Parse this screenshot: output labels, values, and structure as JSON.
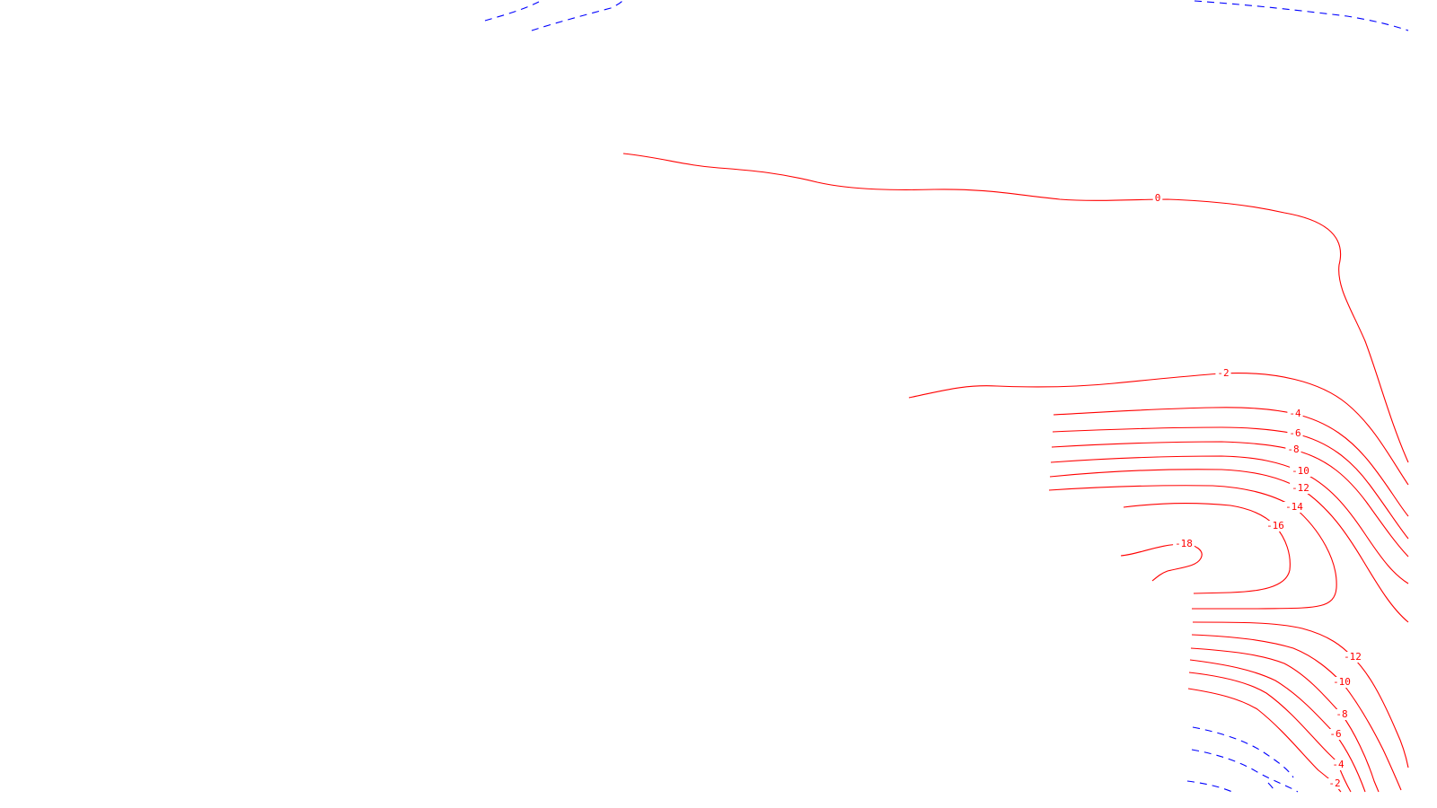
{
  "map": {
    "colors": {
      "negative": "#ff0000",
      "positive": "#0000ff",
      "background": "#ffffff"
    },
    "contours": [
      {
        "id": "c0",
        "label": "0",
        "style": "solid",
        "color": "negative"
      },
      {
        "id": "c-2",
        "label": "-2",
        "style": "solid",
        "color": "negative"
      },
      {
        "id": "c-4",
        "label": "-4",
        "style": "solid",
        "color": "negative"
      },
      {
        "id": "c-6",
        "label": "-6",
        "style": "solid",
        "color": "negative"
      },
      {
        "id": "c-8",
        "label": "-8",
        "style": "solid",
        "color": "negative"
      },
      {
        "id": "c-10",
        "label": "-10",
        "style": "solid",
        "color": "negative"
      },
      {
        "id": "c-12",
        "label": "-12",
        "style": "solid",
        "color": "negative"
      },
      {
        "id": "c-14",
        "label": "-14",
        "style": "solid",
        "color": "negative"
      },
      {
        "id": "c-16",
        "label": "-16",
        "style": "solid",
        "color": "negative"
      },
      {
        "id": "c-18",
        "label": "-18",
        "style": "solid",
        "color": "negative"
      },
      {
        "id": "c-12b",
        "label": "-12",
        "style": "solid",
        "color": "negative"
      },
      {
        "id": "c-10b",
        "label": "-10",
        "style": "solid",
        "color": "negative"
      },
      {
        "id": "c-8b",
        "label": "-8",
        "style": "solid",
        "color": "negative"
      },
      {
        "id": "c-6b",
        "label": "-6",
        "style": "solid",
        "color": "negative"
      },
      {
        "id": "c-4b",
        "label": "-4",
        "style": "solid",
        "color": "negative"
      },
      {
        "id": "c-2b",
        "label": "-2",
        "style": "solid",
        "color": "negative"
      },
      {
        "id": "cp-a",
        "label": "",
        "style": "dashed",
        "color": "positive"
      },
      {
        "id": "cp-b",
        "label": "",
        "style": "dashed",
        "color": "positive"
      },
      {
        "id": "cp-c",
        "label": "",
        "style": "dashed",
        "color": "positive"
      },
      {
        "id": "cp-d",
        "label": "",
        "style": "dashed",
        "color": "positive"
      },
      {
        "id": "cp-e",
        "label": "",
        "style": "dashed",
        "color": "positive"
      },
      {
        "id": "cp-f",
        "label": "",
        "style": "dashed",
        "color": "positive"
      }
    ]
  }
}
